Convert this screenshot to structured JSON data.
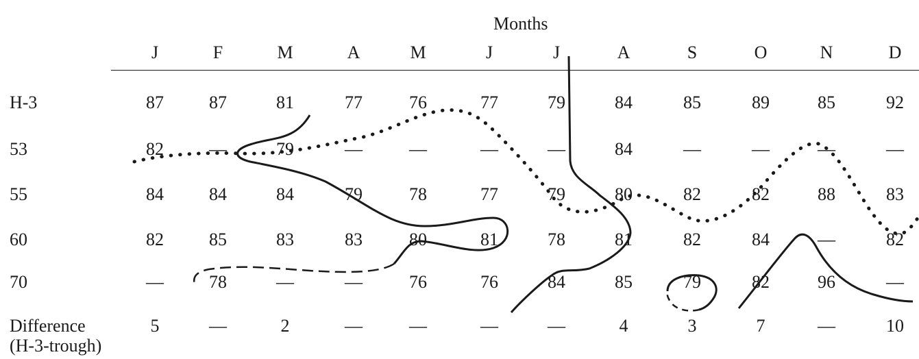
{
  "header": {
    "title": "Months"
  },
  "months": [
    "J",
    "F",
    "M",
    "A",
    "M",
    "J",
    "J",
    "A",
    "S",
    "O",
    "N",
    "D"
  ],
  "rows": [
    {
      "label": "H-3",
      "values": [
        "87",
        "87",
        "81",
        "77",
        "76",
        "77",
        "79",
        "84",
        "85",
        "89",
        "85",
        "92"
      ]
    },
    {
      "label": "53",
      "values": [
        "82",
        "—",
        "79",
        "—",
        "—",
        "—",
        "—",
        "84",
        "—",
        "—",
        "—",
        "—"
      ]
    },
    {
      "label": "55",
      "values": [
        "84",
        "84",
        "84",
        "79",
        "78",
        "77",
        "79",
        "80",
        "82",
        "82",
        "88",
        "83"
      ]
    },
    {
      "label": "60",
      "values": [
        "82",
        "85",
        "83",
        "83",
        "80",
        "81",
        "78",
        "81",
        "82",
        "84",
        "—",
        "82"
      ]
    },
    {
      "label": "70",
      "values": [
        "—",
        "78",
        "—",
        "—",
        "76",
        "76",
        "84",
        "85",
        "79",
        "82",
        "96",
        "—"
      ]
    },
    {
      "label": "Difference",
      "label2": "(H-3-trough)",
      "values": [
        "5",
        "—",
        "2",
        "—",
        "—",
        "—",
        "—",
        "4",
        "3",
        "7",
        "—",
        "10"
      ]
    }
  ]
}
